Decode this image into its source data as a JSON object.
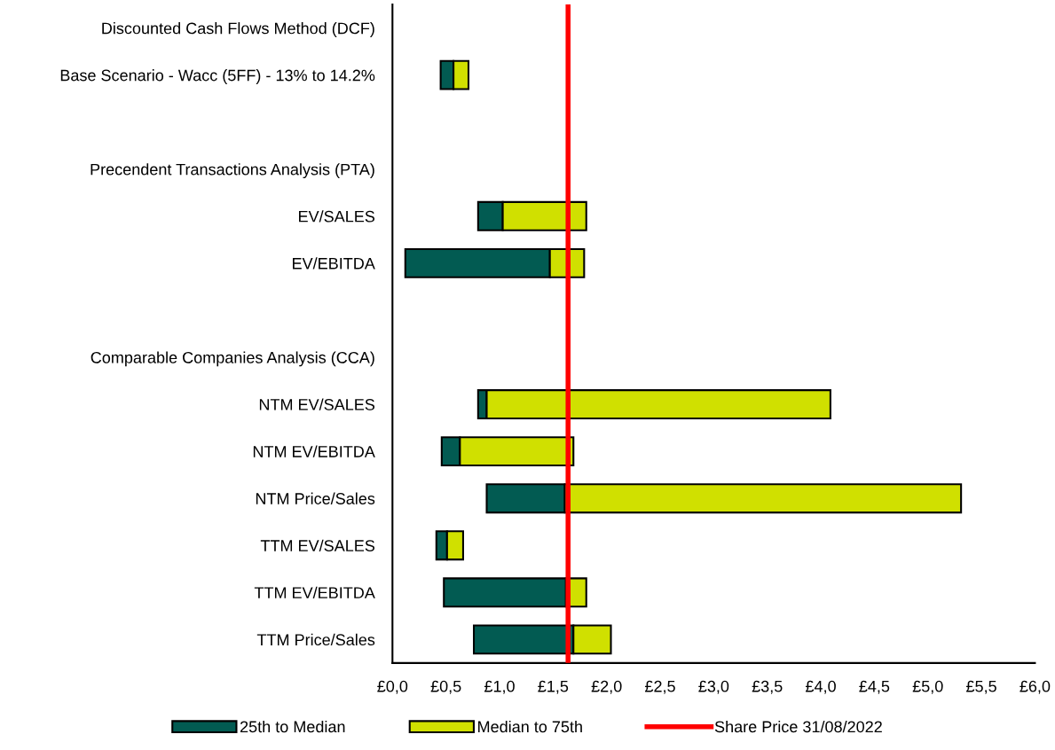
{
  "chart_data": {
    "type": "bar",
    "orientation": "horizontal",
    "categories": [
      "Discounted Cash Flows Method (DCF)",
      "Base Scenario - Wacc (5FF) - 13% to 14.2%",
      null,
      "Precendent Transactions Analysis (PTA)",
      "EV/SALES",
      "EV/EBITDA",
      null,
      "Comparable Companies Analysis (CCA)",
      "NTM EV/SALES",
      "NTM EV/EBITDA",
      "NTM Price/Sales",
      "TTM EV/SALES",
      "TTM EV/EBITDA",
      "TTM Price/Sales"
    ],
    "series": [
      {
        "name": "25th to Median",
        "color": "#025b52",
        "base": [
          null,
          0.45,
          null,
          null,
          0.8,
          0.12,
          null,
          null,
          0.8,
          0.46,
          0.88,
          0.41,
          0.48,
          0.76
        ],
        "values": [
          null,
          0.12,
          null,
          null,
          0.23,
          1.35,
          null,
          null,
          0.08,
          0.17,
          0.73,
          0.1,
          1.14,
          0.93
        ]
      },
      {
        "name": "Median to 75th",
        "color": "#d0e000",
        "base": [
          null,
          0.57,
          null,
          null,
          1.03,
          1.47,
          null,
          null,
          0.88,
          0.63,
          1.61,
          0.51,
          1.62,
          1.69
        ],
        "values": [
          null,
          0.14,
          null,
          null,
          0.78,
          0.32,
          null,
          null,
          3.21,
          1.06,
          3.7,
          0.15,
          0.19,
          0.35
        ]
      }
    ],
    "xlim": [
      0,
      6
    ],
    "xticks": [
      {
        "value": 0,
        "label": "£0,0"
      },
      {
        "value": 0.5,
        "label": "£0,5"
      },
      {
        "value": 1,
        "label": "£1,0"
      },
      {
        "value": 1.5,
        "label": "£1,5"
      },
      {
        "value": 2,
        "label": "£2,0"
      },
      {
        "value": 2.5,
        "label": "£2,5"
      },
      {
        "value": 3,
        "label": "£3,0"
      },
      {
        "value": 3.5,
        "label": "£3,5"
      },
      {
        "value": 4,
        "label": "£4,0"
      },
      {
        "value": 4.5,
        "label": "£4,5"
      },
      {
        "value": 5,
        "label": "£5,0"
      },
      {
        "value": 5.5,
        "label": "£5,5"
      },
      {
        "value": 6,
        "label": "£6,0"
      }
    ],
    "ref_lines": [
      {
        "axis": "x",
        "value": 1.64,
        "label": "Share Price 31/08/2022",
        "color": "#ff0000",
        "line_style": "solid"
      }
    ],
    "grid": false,
    "legend": "bottom"
  }
}
